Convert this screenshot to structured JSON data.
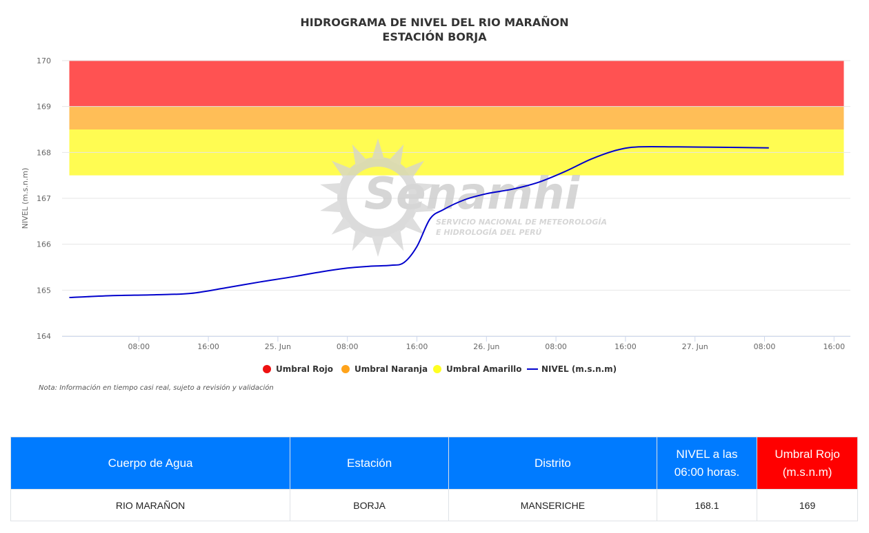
{
  "chart_data": {
    "type": "line",
    "title": "HIDROGRAMA DE NIVEL DEL RIO MARAÑON",
    "subtitle": "ESTACIÓN BORJA",
    "ylabel": "NIVEL (m.s.n.m)",
    "xlabel": "",
    "ylim": [
      164,
      170
    ],
    "yticks": [
      164,
      165,
      166,
      167,
      168,
      169,
      170
    ],
    "x_range_hours": [
      0,
      72
    ],
    "xticks": [
      {
        "label": "08:00",
        "hour": 8
      },
      {
        "label": "16:00",
        "hour": 16
      },
      {
        "label": "25. Jun",
        "hour": 24
      },
      {
        "label": "08:00",
        "hour": 32
      },
      {
        "label": "16:00",
        "hour": 40
      },
      {
        "label": "26. Jun",
        "hour": 48
      },
      {
        "label": "08:00",
        "hour": 56
      },
      {
        "label": "16:00",
        "hour": 64
      },
      {
        "label": "27. Jun",
        "hour": 72
      },
      {
        "label": "08:00",
        "hour": 80
      },
      {
        "label": "16:00",
        "hour": 88
      }
    ],
    "bands": [
      {
        "name": "Umbral Rojo",
        "from": 169,
        "to": 170,
        "color": "#ff5252"
      },
      {
        "name": "Umbral Naranja",
        "from": 168.5,
        "to": 169,
        "color": "#ffbe57"
      },
      {
        "name": "Umbral Amarillo",
        "from": 167.5,
        "to": 168.5,
        "color": "#fffc52"
      }
    ],
    "series": [
      {
        "name": "NIVEL (m.s.n.m)",
        "color": "#0000cc",
        "points": [
          [
            0,
            164.84
          ],
          [
            5,
            164.88
          ],
          [
            10,
            164.9
          ],
          [
            14,
            164.93
          ],
          [
            18,
            165.05
          ],
          [
            22,
            165.18
          ],
          [
            26,
            165.3
          ],
          [
            29,
            165.4
          ],
          [
            32,
            165.48
          ],
          [
            34.5,
            165.52
          ],
          [
            37,
            165.54
          ],
          [
            38.5,
            165.6
          ],
          [
            40,
            165.95
          ],
          [
            41.5,
            166.55
          ],
          [
            43,
            166.75
          ],
          [
            45.5,
            166.97
          ],
          [
            48,
            167.1
          ],
          [
            51,
            167.2
          ],
          [
            54,
            167.35
          ],
          [
            57,
            167.58
          ],
          [
            60,
            167.85
          ],
          [
            63,
            168.05
          ],
          [
            65.5,
            168.12
          ],
          [
            70,
            168.12
          ],
          [
            76,
            168.11
          ],
          [
            80.5,
            168.1
          ]
        ]
      }
    ],
    "legend": [
      "Umbral Rojo",
      "Umbral Naranja",
      "Umbral Amarillo",
      "NIVEL (m.s.n.m)"
    ],
    "legend_colors": [
      "#ee1111",
      "#ffa31a",
      "#ffff22",
      "#0000cc"
    ],
    "legend_position": "bottom-center",
    "grid": true
  },
  "watermark": {
    "brand": "Senamhi",
    "line1": "SERVICIO NACIONAL DE METEOROLOGÍA",
    "line2": "E HIDROLOGÍA DEL PERÚ"
  },
  "note": "Nota: Información en tiempo casi real, sujeto a revisión y validación",
  "table": {
    "headers": [
      "Cuerpo de Agua",
      "Estación",
      "Distrito",
      "NIVEL a las 06:00 horas.",
      "Umbral Rojo (m.s.n.m)"
    ],
    "header_colors": [
      "#007bff",
      "#007bff",
      "#007bff",
      "#007bff",
      "#ff0000"
    ],
    "row": [
      "RIO MARAÑON",
      "BORJA",
      "MANSERICHE",
      "168.1",
      "169"
    ]
  }
}
